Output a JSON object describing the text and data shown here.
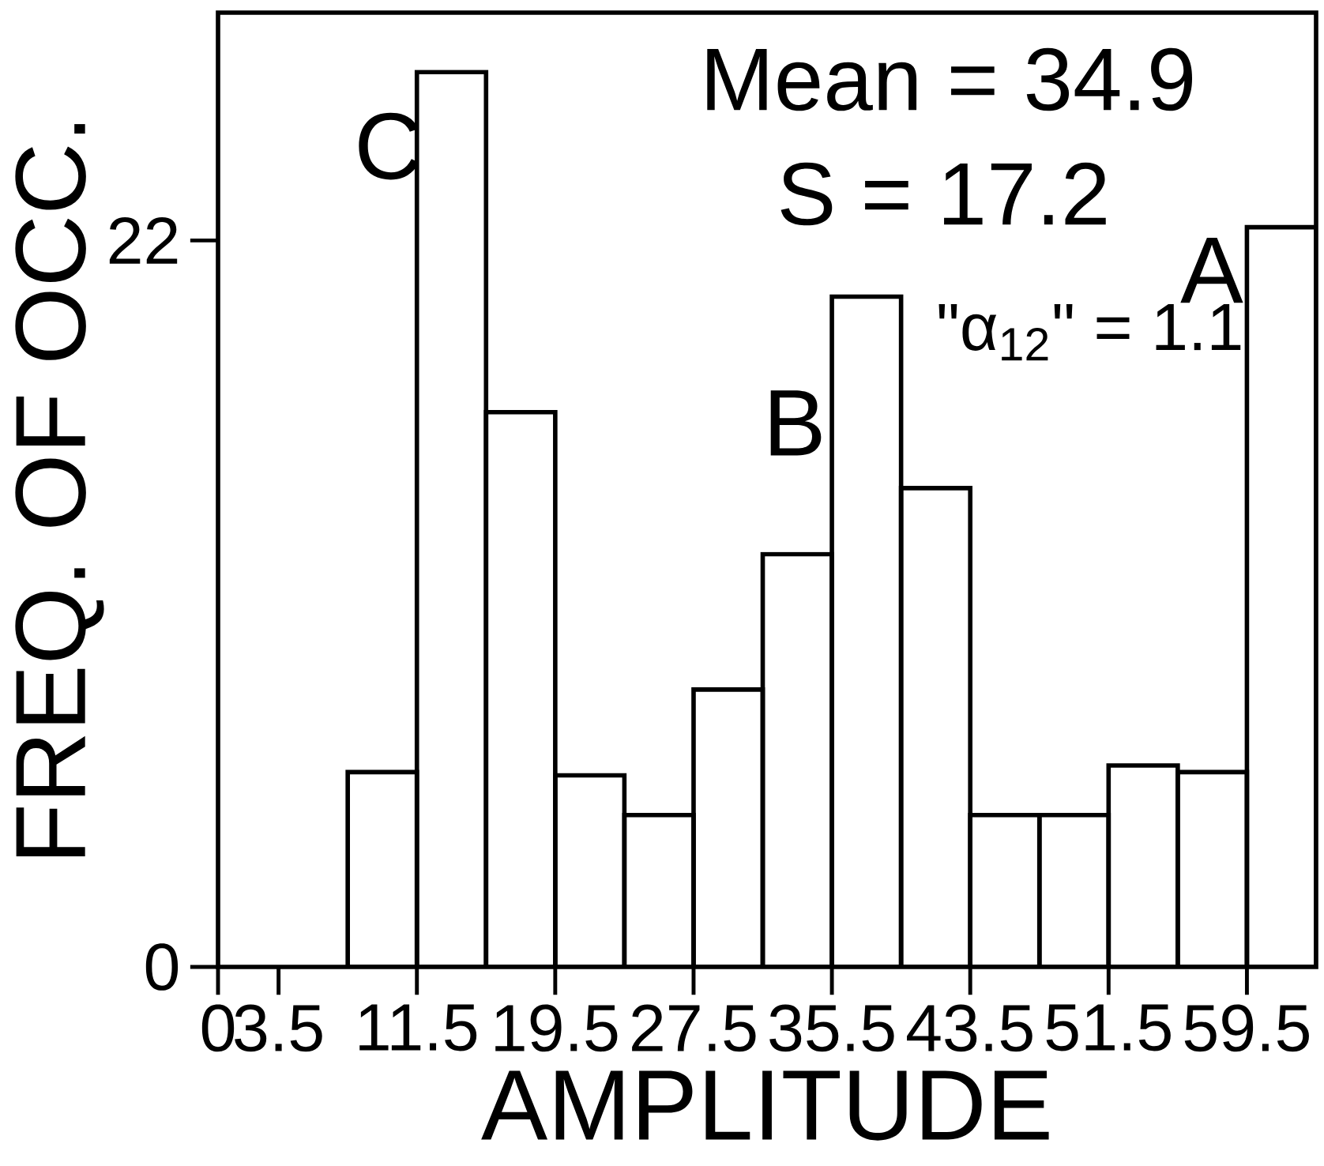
{
  "chart_data": {
    "type": "histogram",
    "xlabel": "AMPLITUDE",
    "ylabel": "FREQ. OF OCC.",
    "color": "#000000",
    "bins": [
      7.5,
      11.5,
      15.5,
      19.5,
      23.5,
      27.5,
      31.5,
      35.5,
      39.5,
      43.5,
      47.5,
      51.5,
      55.5,
      59.5,
      63.5
    ],
    "values": [
      5.9,
      27.1,
      16.8,
      5.8,
      4.6,
      8.4,
      12.5,
      20.3,
      14.5,
      4.6,
      4.6,
      6.1,
      5.9,
      22.4
    ],
    "xlim": [
      0,
      63.5
    ],
    "ylim": [
      0,
      28.9
    ],
    "xticks": [
      0,
      3.5,
      11.5,
      19.5,
      27.5,
      35.5,
      43.5,
      51.5,
      59.5
    ],
    "yticks": [
      0,
      22
    ],
    "annotations": [
      "Mean = 34.9",
      "S = 17.2",
      "\"α$_{12}$\" = 1.1",
      "C",
      "B",
      "A"
    ]
  }
}
